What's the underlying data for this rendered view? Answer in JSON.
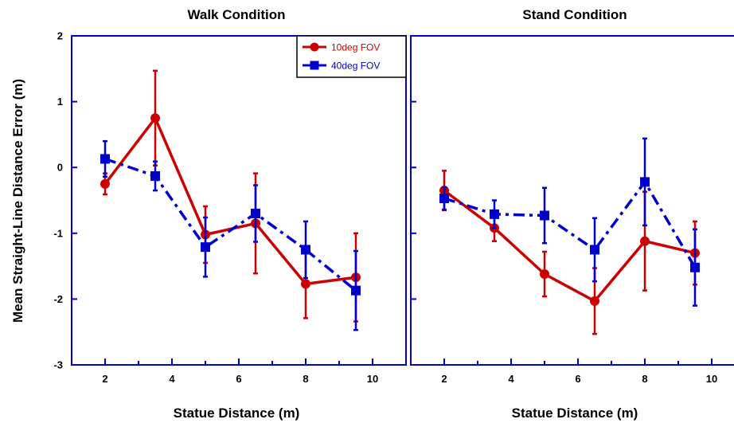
{
  "colors": {
    "axis": "#0000cc",
    "series_10deg": "#cc0000",
    "series_40deg": "#0000cc"
  },
  "shared_ylabel": "Mean Straight-Line Distance Error (m)",
  "chart_data": [
    {
      "type": "line",
      "title": "Walk Condition",
      "xlabel": "Statue Distance (m)",
      "ylabel": "Mean Straight-Line Distance Error (m)",
      "xlim": [
        1,
        11
      ],
      "ylim": [
        -3,
        2
      ],
      "xticks": [
        "2",
        "4",
        "6",
        "8",
        "10"
      ],
      "yticks": [
        "2",
        "1",
        "0",
        "-1",
        "-2",
        "-3"
      ],
      "legend": {
        "placement": "top-right",
        "entries": [
          "10deg FOV",
          "40deg FOV"
        ]
      },
      "x": [
        2,
        3.5,
        5,
        6.5,
        8,
        9.5
      ],
      "series": [
        {
          "name": "10deg FOV",
          "color": "#cc0000",
          "marker": "circle",
          "line": "solid",
          "values": [
            -0.25,
            0.75,
            -1.02,
            -0.85,
            -1.77,
            -1.67
          ],
          "errors": [
            0.16,
            0.72,
            0.43,
            0.76,
            0.52,
            0.67
          ]
        },
        {
          "name": "40deg FOV",
          "color": "#0000cc",
          "marker": "square",
          "line": "dashdot",
          "values": [
            0.13,
            -0.13,
            -1.21,
            -0.7,
            -1.25,
            -1.87
          ],
          "errors": [
            0.27,
            0.22,
            0.45,
            0.43,
            0.43,
            0.6
          ]
        }
      ]
    },
    {
      "type": "line",
      "title": "Stand Condition",
      "xlabel": "Statue Distance (m)",
      "xlim": [
        1,
        11
      ],
      "ylim": [
        -3,
        2
      ],
      "xticks": [
        "2",
        "4",
        "6",
        "8",
        "10"
      ],
      "x": [
        2,
        3.5,
        5,
        6.5,
        8,
        9.5
      ],
      "series": [
        {
          "name": "10deg FOV",
          "color": "#cc0000",
          "marker": "circle",
          "line": "solid",
          "values": [
            -0.35,
            -0.92,
            -1.62,
            -2.03,
            -1.12,
            -1.3
          ],
          "errors": [
            0.3,
            0.2,
            0.34,
            0.5,
            0.75,
            0.48
          ]
        },
        {
          "name": "40deg FOV",
          "color": "#0000cc",
          "marker": "square",
          "line": "dashdot",
          "values": [
            -0.47,
            -0.71,
            -0.73,
            -1.25,
            -0.22,
            -1.52
          ],
          "errors": [
            0.17,
            0.21,
            0.42,
            0.48,
            0.66,
            0.58
          ]
        }
      ]
    }
  ]
}
